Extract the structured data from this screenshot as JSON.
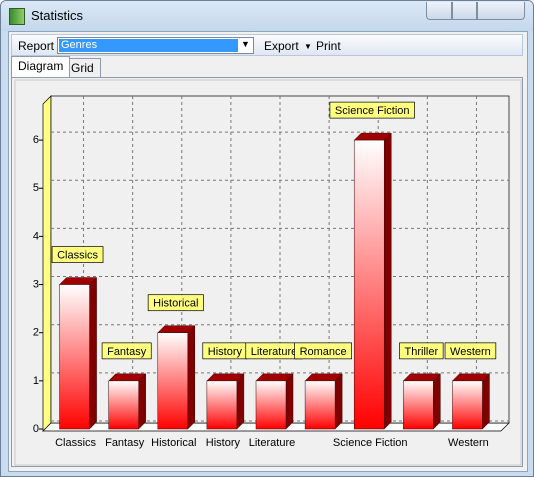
{
  "window": {
    "title": "Statistics"
  },
  "toolbar": {
    "report_label": "Report",
    "report_value": "Genres",
    "export": "Export",
    "print": "Print"
  },
  "tabs": [
    "Diagram",
    "Grid"
  ],
  "chart_data": {
    "type": "bar3d",
    "categories": [
      "Classics",
      "Fantasy",
      "Historical",
      "History",
      "Literature",
      "Romance",
      "Science Fiction",
      "Thriller",
      "Western"
    ],
    "xtick_labels": [
      "Classics",
      "Fantasy",
      "Historical",
      "History",
      "Literature",
      null,
      "Science Fiction",
      null,
      "Western"
    ],
    "values": [
      3,
      1,
      2,
      1,
      1,
      1,
      6,
      1,
      1
    ],
    "color": "#ff0000",
    "ylim": [
      0,
      6.75
    ],
    "yticks": [
      0,
      1,
      2,
      3,
      4,
      5,
      6
    ],
    "grid": true
  }
}
